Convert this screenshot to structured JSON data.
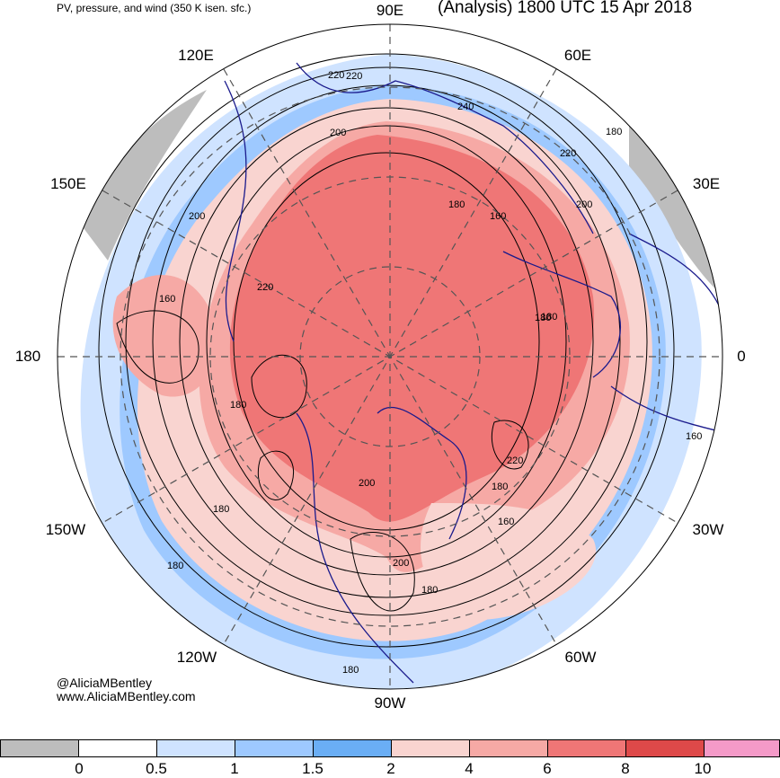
{
  "header": {
    "left_title": "PV, pressure, and wind (350 K isen. sfc.)",
    "right_title": "(Analysis) 1800 UTC 15 Apr 2018"
  },
  "longitude_labels": {
    "lon_90e": "90E",
    "lon_60e": "60E",
    "lon_30e": "30E",
    "lon_0": "0",
    "lon_30w": "30W",
    "lon_60w": "60W",
    "lon_90w": "90W",
    "lon_120w": "120W",
    "lon_150w": "150W",
    "lon_180": "180",
    "lon_150e": "150E",
    "lon_120e": "120E"
  },
  "contour_labels": [
    "240",
    "220",
    "200",
    "180",
    "160",
    "180",
    "200",
    "220",
    "180",
    "160",
    "180",
    "200",
    "220",
    "180",
    "160",
    "180",
    "200",
    "180",
    "200",
    "220",
    "180",
    "220",
    "160",
    "180",
    "180"
  ],
  "credits": {
    "handle": "@AliciaMBentley",
    "website": "www.AliciaMBentley.com"
  },
  "colorbar": {
    "ticks": [
      "0",
      "0.5",
      "1",
      "1.5",
      "2",
      "4",
      "6",
      "8",
      "10"
    ],
    "colors": [
      "#bdbdbd",
      "#ffffff",
      "#cfe3ff",
      "#9ec9ff",
      "#6aaef5",
      "#f9d4d0",
      "#f6a9a5",
      "#ef7676",
      "#de4949",
      "#f49ac8"
    ]
  },
  "map_colors": {
    "high_pv": "#ef7676",
    "mid_pv": "#f6a9a5",
    "low_pv": "#f9d4d0",
    "blue_1": "#cfe3ff",
    "blue_2": "#9ec9ff",
    "gray": "#bdbdbd",
    "coast": "#1a1a8c"
  }
}
